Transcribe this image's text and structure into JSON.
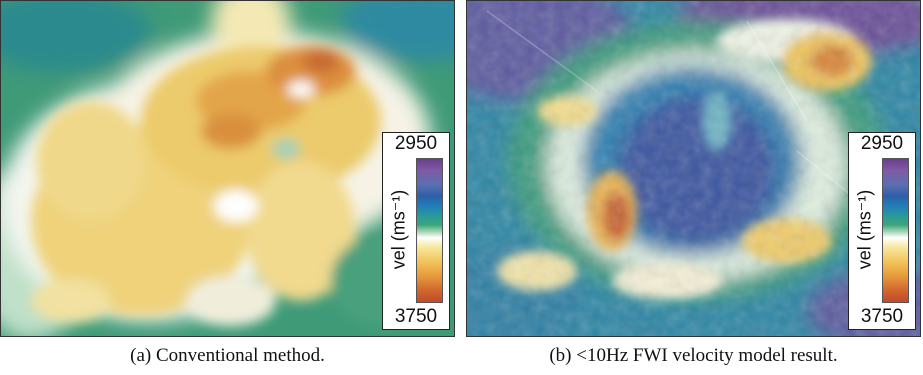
{
  "panels": [
    {
      "caption": "(a)  Conventional method.",
      "colorbar": {
        "top_value": "2950",
        "bottom_value": "3750",
        "unit_label": "vel (ms⁻¹)"
      }
    },
    {
      "caption": "(b)  <10Hz FWI velocity model result.",
      "colorbar": {
        "top_value": "2950",
        "bottom_value": "3750",
        "unit_label": "vel (ms⁻¹)"
      }
    }
  ],
  "colors": {
    "low_velocity": "#6a3f8c",
    "mid_velocity": "#2f8f8a",
    "high_velocity": "#c04a2a"
  }
}
